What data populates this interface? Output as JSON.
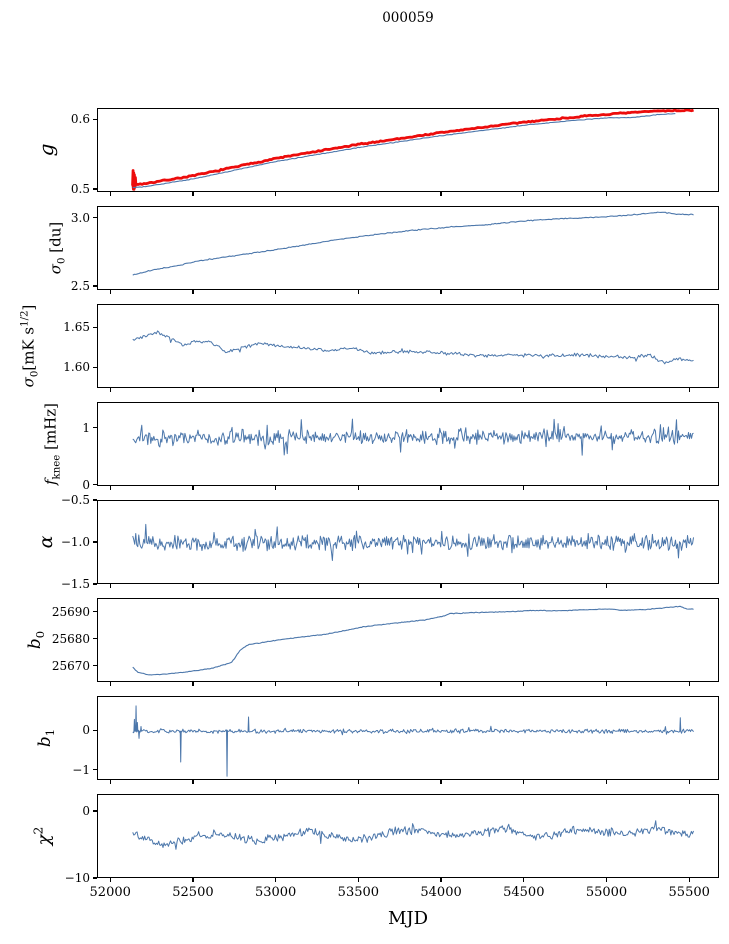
{
  "title": "000059",
  "xlabel": "MJD",
  "colors": {
    "blue": "#4c77ab",
    "red": "#ec0c0c",
    "axis": "#000000",
    "background": "#ffffff"
  },
  "x_axis": {
    "range": [
      51920,
      55680
    ],
    "ticks": [
      52000,
      52500,
      53000,
      53500,
      54000,
      54500,
      55000,
      55500
    ],
    "tick_labels": [
      "52000",
      "52500",
      "53000",
      "53500",
      "54000",
      "54500",
      "55000",
      "55500"
    ]
  },
  "chart_data": [
    {
      "type": "line",
      "name": "g",
      "ylabel_segments": [
        {
          "t": "g",
          "it": true
        }
      ],
      "ylim": [
        0.4956,
        0.6162
      ],
      "yticks": [
        {
          "v": 0.6,
          "label": "0.6"
        },
        {
          "v": 0.5,
          "label": "0.5"
        }
      ],
      "series": [
        {
          "name": "g-calibrated",
          "color": "red",
          "width": 2.8,
          "n": 300,
          "noise": 0.0012,
          "tail": 0,
          "x_range": [
            52130,
            55520
          ],
          "anchors": [
            [
              52130,
              0.5075
            ],
            [
              52200,
              0.509
            ],
            [
              52500,
              0.5205
            ],
            [
              53000,
              0.5455
            ],
            [
              53500,
              0.5655
            ],
            [
              54000,
              0.5825
            ],
            [
              54500,
              0.5975
            ],
            [
              54800,
              0.6045
            ],
            [
              55000,
              0.6085
            ],
            [
              55150,
              0.611
            ],
            [
              55300,
              0.6135
            ],
            [
              55420,
              0.614
            ],
            [
              55520,
              0.6145
            ]
          ],
          "spikes": [
            [
              52132,
              0.5278
            ],
            [
              52134,
              0.501
            ],
            [
              52136,
              0.5245
            ],
            [
              52138,
              0.5008
            ],
            [
              52140,
              0.522
            ],
            [
              52143,
              0.5035
            ],
            [
              52146,
              0.518
            ]
          ]
        },
        {
          "name": "g-raw",
          "color": "blue",
          "width": 1.1,
          "n": 300,
          "noise": 0.0006,
          "tail": 0,
          "x_range": [
            52130,
            55410
          ],
          "anchors": [
            [
              52130,
              0.5035
            ],
            [
              52200,
              0.5045
            ],
            [
              52500,
              0.516
            ],
            [
              53000,
              0.541
            ],
            [
              53500,
              0.561
            ],
            [
              54000,
              0.578
            ],
            [
              54500,
              0.593
            ],
            [
              54800,
              0.6
            ],
            [
              55000,
              0.6035
            ],
            [
              55150,
              0.604
            ],
            [
              55300,
              0.608
            ],
            [
              55410,
              0.6095
            ]
          ],
          "spikes": []
        }
      ]
    },
    {
      "type": "line",
      "name": "sigma0_du",
      "ylabel_segments": [
        {
          "t": "σ",
          "it": true
        },
        {
          "t": "0",
          "sub": true
        },
        {
          "t": " [du]"
        }
      ],
      "ylim": [
        2.471,
        3.087
      ],
      "yticks": [
        {
          "v": 3.0,
          "label": "3.0"
        },
        {
          "v": 2.5,
          "label": "2.5"
        }
      ],
      "series": [
        {
          "name": "sigma0-du",
          "color": "blue",
          "width": 1.1,
          "n": 360,
          "noise": 0.0045,
          "tail": 0,
          "x_range": [
            52130,
            55520
          ],
          "anchors": [
            [
              52130,
              2.588
            ],
            [
              52250,
              2.625
            ],
            [
              52400,
              2.657
            ],
            [
              52545,
              2.695
            ],
            [
              52700,
              2.722
            ],
            [
              52845,
              2.747
            ],
            [
              53000,
              2.775
            ],
            [
              53148,
              2.805
            ],
            [
              53350,
              2.845
            ],
            [
              53530,
              2.875
            ],
            [
              53700,
              2.9
            ],
            [
              53900,
              2.925
            ],
            [
              54100,
              2.945
            ],
            [
              54300,
              2.96
            ],
            [
              54500,
              2.985
            ],
            [
              54700,
              3.0
            ],
            [
              54900,
              3.01
            ],
            [
              55050,
              3.02
            ],
            [
              55200,
              3.035
            ],
            [
              55330,
              3.05
            ],
            [
              55420,
              3.035
            ],
            [
              55520,
              3.03
            ]
          ],
          "spikes": []
        }
      ]
    },
    {
      "type": "line",
      "name": "sigma0_mK",
      "ylabel_segments": [
        {
          "t": "σ",
          "it": true
        },
        {
          "t": "0",
          "sub": true
        },
        {
          "t": "[mK s"
        },
        {
          "t": "1/2",
          "sup": true
        },
        {
          "t": "]"
        }
      ],
      "ylim": [
        1.574,
        1.679
      ],
      "yticks": [
        {
          "v": 1.65,
          "label": "1.65"
        },
        {
          "v": 1.6,
          "label": "1.60"
        }
      ],
      "series": [
        {
          "name": "sigma0-mK",
          "color": "blue",
          "width": 1.0,
          "n": 430,
          "noise": 0.0028,
          "tail": 0.04,
          "x_range": [
            52130,
            55520
          ],
          "anchors": [
            [
              52130,
              1.636
            ],
            [
              52200,
              1.64
            ],
            [
              52280,
              1.644
            ],
            [
              52360,
              1.637
            ],
            [
              52430,
              1.629
            ],
            [
              52520,
              1.634
            ],
            [
              52600,
              1.632
            ],
            [
              52700,
              1.62
            ],
            [
              52800,
              1.626
            ],
            [
              52900,
              1.631
            ],
            [
              53000,
              1.628
            ],
            [
              53150,
              1.625
            ],
            [
              53300,
              1.622
            ],
            [
              53450,
              1.625
            ],
            [
              53600,
              1.619
            ],
            [
              53800,
              1.621
            ],
            [
              54000,
              1.619
            ],
            [
              54200,
              1.616
            ],
            [
              54400,
              1.617
            ],
            [
              54600,
              1.615
            ],
            [
              54800,
              1.617
            ],
            [
              55000,
              1.615
            ],
            [
              55150,
              1.613
            ],
            [
              55260,
              1.617
            ],
            [
              55340,
              1.606
            ],
            [
              55430,
              1.612
            ],
            [
              55520,
              1.609
            ]
          ],
          "spikes": []
        }
      ]
    },
    {
      "type": "line",
      "name": "f_knee",
      "ylabel_segments": [
        {
          "t": "f",
          "it": true
        },
        {
          "t": "knee",
          "sub": true
        },
        {
          "t": " [mHz]"
        }
      ],
      "ylim": [
        -0.02,
        1.447
      ],
      "yticks": [
        {
          "v": 1,
          "label": "1"
        },
        {
          "v": 0,
          "label": "0"
        }
      ],
      "series": [
        {
          "name": "f-knee",
          "color": "blue",
          "width": 1.0,
          "n": 560,
          "noise": 0.155,
          "tail": 0.07,
          "x_range": [
            52130,
            55520
          ],
          "anchors": [
            [
              52130,
              0.83
            ],
            [
              53200,
              0.85
            ],
            [
              54500,
              0.86
            ],
            [
              55520,
              0.87
            ]
          ],
          "spikes": []
        }
      ]
    },
    {
      "type": "line",
      "name": "alpha",
      "ylabel_segments": [
        {
          "t": "α",
          "it": true
        }
      ],
      "ylim": [
        -1.5,
        -0.5
      ],
      "yticks": [
        {
          "v": -0.5,
          "label": "−0.5"
        },
        {
          "v": -1.0,
          "label": "−1.0"
        },
        {
          "v": -1.5,
          "label": "−1.5"
        }
      ],
      "series": [
        {
          "name": "alpha",
          "color": "blue",
          "width": 1.0,
          "n": 560,
          "noise": 0.105,
          "tail": 0.08,
          "x_range": [
            52130,
            55520
          ],
          "anchors": [
            [
              52130,
              -1.0
            ],
            [
              55520,
              -0.99
            ]
          ],
          "spikes": []
        }
      ]
    },
    {
      "type": "line",
      "name": "b0",
      "ylabel_segments": [
        {
          "t": "b",
          "it": true
        },
        {
          "t": "0",
          "sub": true
        }
      ],
      "ylim": [
        25664,
        25695
      ],
      "yticks": [
        {
          "v": 25690,
          "label": "25690"
        },
        {
          "v": 25680,
          "label": "25680"
        },
        {
          "v": 25670,
          "label": "25670"
        }
      ],
      "series": [
        {
          "name": "b0",
          "color": "blue",
          "width": 1.1,
          "n": 420,
          "noise": 0.16,
          "tail": 0,
          "x_range": [
            52130,
            55520
          ],
          "anchors": [
            [
              52130,
              25669.8
            ],
            [
              52160,
              25668
            ],
            [
              52230,
              25667
            ],
            [
              52300,
              25667.2
            ],
            [
              52450,
              25668
            ],
            [
              52600,
              25669.3
            ],
            [
              52690,
              25670.8
            ],
            [
              52730,
              25671.8
            ],
            [
              52745,
              25673
            ],
            [
              52780,
              25676.2
            ],
            [
              52830,
              25678.2
            ],
            [
              52900,
              25678.8
            ],
            [
              53000,
              25679.8
            ],
            [
              53150,
              25681
            ],
            [
              53300,
              25682
            ],
            [
              53530,
              25684.8
            ],
            [
              53700,
              25686
            ],
            [
              53900,
              25687.3
            ],
            [
              54000,
              25688.6
            ],
            [
              54050,
              25689.6
            ],
            [
              54200,
              25690
            ],
            [
              54400,
              25690.3
            ],
            [
              54550,
              25690.8
            ],
            [
              54700,
              25690.6
            ],
            [
              54850,
              25691
            ],
            [
              55000,
              25691.3
            ],
            [
              55100,
              25690.8
            ],
            [
              55250,
              25691.2
            ],
            [
              55380,
              25692
            ],
            [
              55440,
              25692.3
            ],
            [
              55480,
              25691.3
            ],
            [
              55520,
              25691.2
            ]
          ],
          "spikes": []
        }
      ]
    },
    {
      "type": "line",
      "name": "b1",
      "ylabel_segments": [
        {
          "t": "b",
          "it": true
        },
        {
          "t": "1",
          "sub": true
        }
      ],
      "ylim": [
        -1.26,
        0.866
      ],
      "yticks": [
        {
          "v": 0,
          "label": "0"
        },
        {
          "v": -1,
          "label": "−1"
        }
      ],
      "series": [
        {
          "name": "b1",
          "color": "blue",
          "width": 1.0,
          "n": 560,
          "noise": 0.062,
          "tail": 0.05,
          "x_range": [
            52130,
            55520
          ],
          "anchors": [
            [
              52130,
              0.0
            ],
            [
              55520,
              0.0
            ]
          ],
          "spikes": [
            [
              52140,
              0.3
            ],
            [
              52150,
              0.64
            ],
            [
              52158,
              0.22
            ],
            [
              52168,
              -0.18
            ],
            [
              52180,
              0.12
            ],
            [
              52420,
              -0.78
            ],
            [
              52700,
              -1.14
            ],
            [
              52830,
              0.36
            ],
            [
              55440,
              0.34
            ]
          ]
        }
      ]
    },
    {
      "type": "line",
      "name": "chi2",
      "ylabel_segments": [
        {
          "t": "χ",
          "it": true
        },
        {
          "t": "2",
          "sup": true
        }
      ],
      "ylim": [
        -10,
        2.53
      ],
      "yticks": [
        {
          "v": 0,
          "label": "0"
        },
        {
          "v": -10,
          "label": "−10"
        }
      ],
      "series": [
        {
          "name": "chi2",
          "color": "blue",
          "width": 1.0,
          "n": 520,
          "noise": 0.75,
          "tail": 0.03,
          "x_range": [
            52130,
            55520
          ],
          "anchors": [
            [
              52130,
              -3.2
            ],
            [
              52230,
              -4.2
            ],
            [
              52320,
              -5.0
            ],
            [
              52420,
              -4.4
            ],
            [
              52520,
              -3.6
            ],
            [
              52620,
              -3.3
            ],
            [
              52750,
              -3.8
            ],
            [
              52870,
              -4.3
            ],
            [
              52980,
              -3.9
            ],
            [
              53100,
              -3.3
            ],
            [
              53220,
              -2.8
            ],
            [
              53330,
              -3.6
            ],
            [
              53450,
              -4.2
            ],
            [
              53570,
              -3.9
            ],
            [
              53700,
              -3.0
            ],
            [
              53850,
              -2.7
            ],
            [
              53980,
              -3.3
            ],
            [
              54100,
              -3.6
            ],
            [
              54220,
              -3.0
            ],
            [
              54350,
              -2.5
            ],
            [
              54470,
              -3.2
            ],
            [
              54600,
              -3.7
            ],
            [
              54720,
              -3.1
            ],
            [
              54850,
              -2.6
            ],
            [
              54980,
              -2.9
            ],
            [
              55100,
              -3.3
            ],
            [
              55230,
              -2.7
            ],
            [
              55350,
              -2.9
            ],
            [
              55450,
              -3.2
            ],
            [
              55520,
              -3.4
            ]
          ],
          "spikes": []
        }
      ]
    }
  ]
}
